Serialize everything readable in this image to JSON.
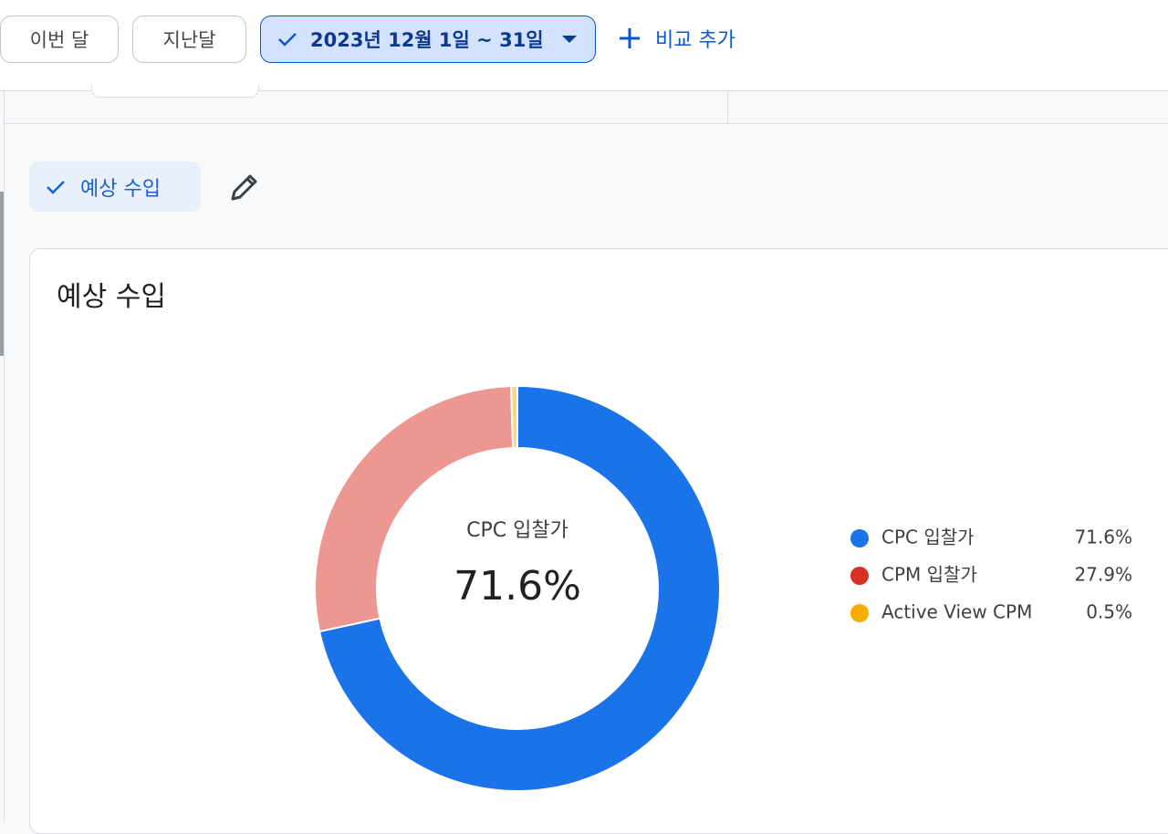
{
  "toolbar": {
    "buttons": [
      "이번 달",
      "지난달"
    ],
    "date_range": "2023년 12월 1일 ~ 31일",
    "compare": "비교 추가"
  },
  "filter_chip": "예상 수입",
  "chart_data": {
    "type": "pie",
    "title": "예상 수입",
    "categories": [
      "CPC 입찰가",
      "CPM 입찰가",
      "Active View CPM"
    ],
    "values": [
      71.6,
      27.9,
      0.5
    ],
    "value_labels": [
      "71.6%",
      "27.9%",
      "0.5%"
    ],
    "colors": [
      "#1a73e8",
      "#d93025",
      "#f9ab00"
    ],
    "donut": true,
    "legend": "right"
  }
}
